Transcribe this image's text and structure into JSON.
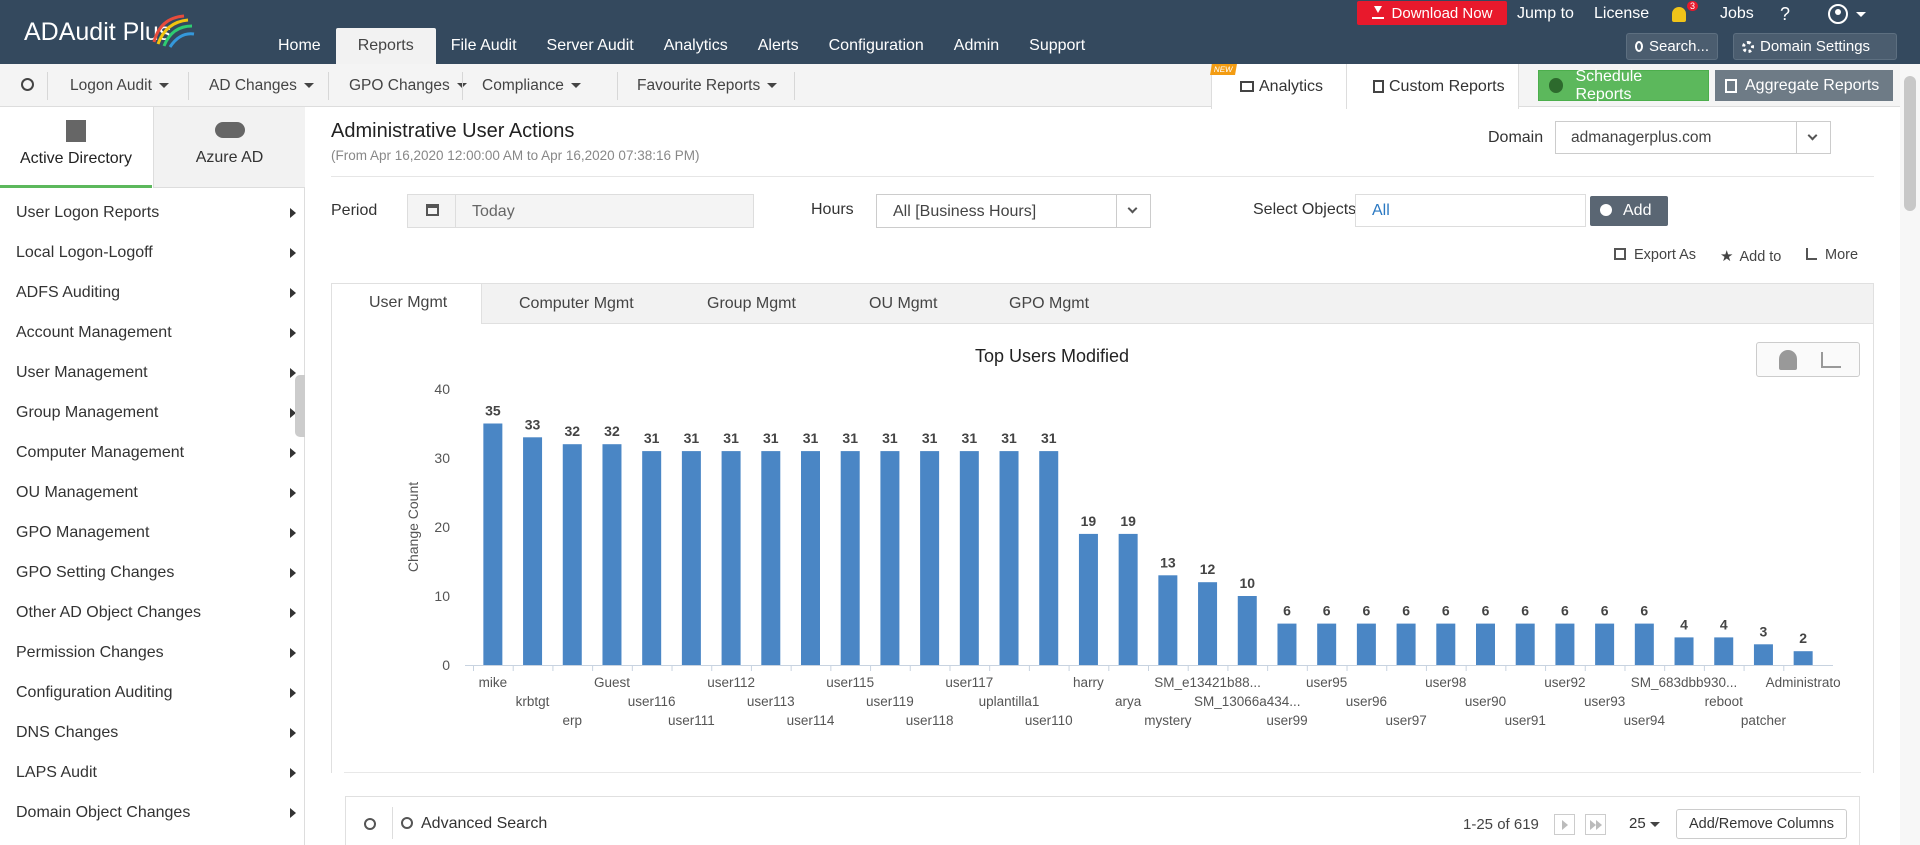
{
  "header": {
    "logo_text": "ADAudit Plus",
    "nav": [
      "Home",
      "Reports",
      "File Audit",
      "Server Audit",
      "Analytics",
      "Alerts",
      "Configuration",
      "Admin",
      "Support"
    ],
    "active_nav": "Reports",
    "download_label": "Download Now",
    "jump_to": "Jump to",
    "license": "License",
    "notification_count": "3",
    "jobs": "Jobs",
    "help": "?",
    "search_label": "Search...",
    "domain_settings": "Domain Settings"
  },
  "subnav": {
    "items": [
      "Logon Audit",
      "AD Changes",
      "GPO Changes",
      "Compliance",
      "Favourite Reports"
    ],
    "new_badge": "NEW",
    "analytics": "Analytics",
    "custom_reports": "Custom Reports",
    "schedule_reports": "Schedule Reports",
    "aggregate_reports": "Aggregate Reports"
  },
  "sidebar": {
    "tabs": [
      "Active Directory",
      "Azure AD"
    ],
    "items": [
      "User Logon Reports",
      "Local Logon-Logoff",
      "ADFS Auditing",
      "Account Management",
      "User Management",
      "Group Management",
      "Computer Management",
      "OU Management",
      "GPO Management",
      "GPO Setting Changes",
      "Other AD Object Changes",
      "Permission Changes",
      "Configuration Auditing",
      "DNS Changes",
      "LAPS Audit",
      "Domain Object Changes"
    ]
  },
  "report": {
    "title": "Administrative User Actions",
    "subtitle": "(From Apr 16,2020 12:00:00 AM to Apr 16,2020 07:38:16 PM)",
    "domain_label": "Domain",
    "domain_value": "admanagerplus.com",
    "period_label": "Period",
    "period_value": "Today",
    "hours_label": "Hours",
    "hours_value": "All [Business Hours]",
    "select_objects_label": "Select Objects",
    "select_objects_value": "All",
    "add_button": "Add",
    "export_as": "Export As",
    "add_to": "Add to",
    "more": "More",
    "tabs": [
      "User Mgmt",
      "Computer Mgmt",
      "Group Mgmt",
      "OU Mgmt",
      "GPO Mgmt"
    ],
    "active_tab": "User Mgmt"
  },
  "chart_data": {
    "type": "bar",
    "title": "Top Users Modified",
    "ylabel": "Change Count",
    "xlabel": "",
    "ylim": [
      0,
      40
    ],
    "yticks": [
      0,
      10,
      20,
      30,
      40
    ],
    "categories": [
      "mike",
      "krbtgt",
      "erp",
      "Guest",
      "user116",
      "user111",
      "user112",
      "user113",
      "user114",
      "user115",
      "user119",
      "user118",
      "user117",
      "uplantilla1",
      "user110",
      "harry",
      "arya",
      "mystery",
      "SM_e13421b88...",
      "SM_13066a434...",
      "user99",
      "user95",
      "user96",
      "user97",
      "user98",
      "user90",
      "user91",
      "user92",
      "user93",
      "user94",
      "SM_683dbb930...",
      "reboot",
      "patcher",
      "Administrato"
    ],
    "values": [
      35,
      33,
      32,
      32,
      31,
      31,
      31,
      31,
      31,
      31,
      31,
      31,
      31,
      31,
      31,
      19,
      19,
      13,
      12,
      10,
      6,
      6,
      6,
      6,
      6,
      6,
      6,
      6,
      6,
      6,
      4,
      4,
      3,
      2
    ],
    "bar_color": "#4a86c5",
    "grid": false
  },
  "table": {
    "advanced_search": "Advanced Search",
    "pagination": "1-25 of 619",
    "page_size": "25",
    "add_remove_columns": "Add/Remove Columns"
  }
}
